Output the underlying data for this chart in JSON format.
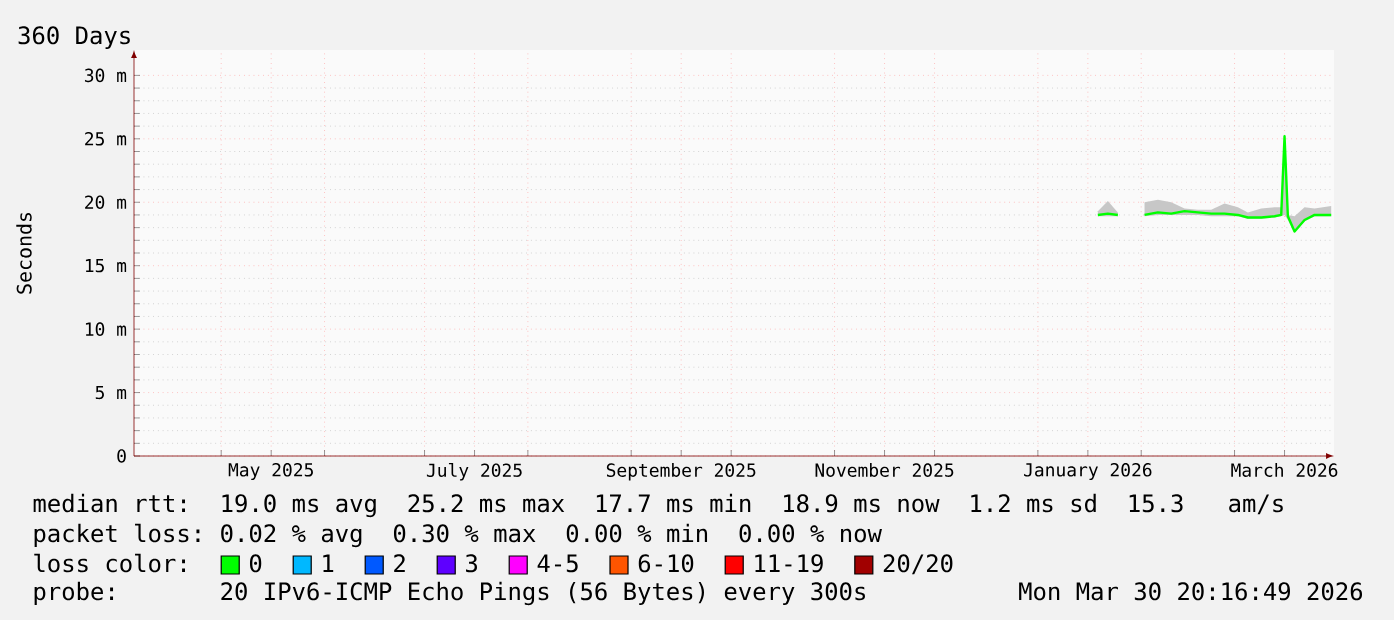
{
  "chart_data": {
    "type": "line",
    "title": "360 Days",
    "ylabel": "Seconds",
    "x": [
      "2026-02-02",
      "2026-02-06",
      "2026-02-10",
      "2026-02-14",
      "2026-02-18",
      "2026-02-22",
      "2026-02-26",
      "2026-03-02",
      "2026-03-05",
      "2026-03-09",
      "2026-03-13",
      "2026-03-15",
      "2026-03-16",
      "2026-03-17",
      "2026-03-19",
      "2026-03-22",
      "2026-03-25",
      "2026-03-30"
    ],
    "series": [
      {
        "name": "0",
        "color": "#00ff00",
        "values": [
          19.0,
          19.2,
          19.1,
          19.3,
          19.2,
          19.1,
          19.1,
          19.0,
          18.8,
          18.8,
          18.9,
          19.0,
          25.2,
          18.9,
          17.7,
          18.6,
          19.0,
          19.0
        ],
        "lower": [
          18.9,
          19.0,
          19.0,
          19.0,
          19.0,
          18.9,
          18.9,
          18.9,
          18.7,
          18.7,
          18.8,
          18.9,
          19.0,
          18.6,
          17.6,
          18.5,
          18.9,
          18.9
        ],
        "upper": [
          20.0,
          20.2,
          20.0,
          19.5,
          19.4,
          19.4,
          19.9,
          19.6,
          19.2,
          19.5,
          19.6,
          19.6,
          25.2,
          19.0,
          18.9,
          19.6,
          19.5,
          19.7
        ]
      },
      {
        "color": "#00ff00",
        "x": [
          "2026-01-19",
          "2026-01-22",
          "2026-01-25"
        ],
        "values": [
          19.0,
          19.1,
          19.0
        ],
        "lower": [
          18.9,
          18.9,
          18.9
        ],
        "upper": [
          19.3,
          20.1,
          19.2
        ]
      },
      {
        "name": "1",
        "color": "#00b8ff",
        "values": [
          null,
          null,
          null,
          null,
          null,
          null,
          null,
          null,
          null,
          null,
          null,
          null,
          null,
          null,
          null,
          null,
          null,
          null
        ]
      },
      {
        "name": "2",
        "color": "#0059ff",
        "values": [
          null,
          null,
          null,
          null,
          null,
          null,
          null,
          null,
          null,
          null,
          null,
          null,
          null,
          null,
          null,
          null,
          null,
          null
        ]
      },
      {
        "name": "3",
        "color": "#5e00ff",
        "values": [
          null,
          null,
          null,
          null,
          null,
          null,
          null,
          null,
          null,
          null,
          null,
          null,
          null,
          null,
          null,
          null,
          null,
          null
        ]
      },
      {
        "name": "4-5",
        "color": "#ff00ff",
        "values": [
          null,
          null,
          null,
          null,
          null,
          null,
          null,
          null,
          null,
          null,
          null,
          null,
          null,
          null,
          null,
          null,
          null,
          null
        ]
      },
      {
        "name": "6-10",
        "color": "#ff5500",
        "values": [
          null,
          null,
          null,
          null,
          null,
          null,
          null,
          null,
          null,
          null,
          null,
          null,
          null,
          null,
          null,
          null,
          null,
          null
        ]
      },
      {
        "name": "11-19",
        "color": "#ff0000",
        "values": [
          null,
          null,
          null,
          null,
          null,
          null,
          null,
          null,
          null,
          null,
          null,
          null,
          null,
          null,
          null,
          null,
          null,
          null
        ]
      },
      {
        "name": "20/20",
        "color": "#a10000",
        "values": [
          null,
          null,
          null,
          null,
          null,
          null,
          null,
          null,
          null,
          null,
          null,
          null,
          null,
          null,
          null,
          null,
          null,
          null
        ]
      }
    ],
    "xlim": [
      "2025-04-04T20:16",
      "2026-03-30T20:16"
    ],
    "xticks": [
      {
        "value": "2025-05-01",
        "label": null
      },
      {
        "value": "2025-05-16",
        "label": "May 2025"
      },
      {
        "value": "2025-06-01",
        "label": null
      },
      {
        "value": "2025-07-01",
        "label": null
      },
      {
        "value": "2025-07-16",
        "label": "July 2025"
      },
      {
        "value": "2025-08-01",
        "label": null
      },
      {
        "value": "2025-09-01",
        "label": null
      },
      {
        "value": "2025-09-16",
        "label": "September 2025"
      },
      {
        "value": "2025-10-01",
        "label": null
      },
      {
        "value": "2025-11-01",
        "label": null
      },
      {
        "value": "2025-11-16",
        "label": "November 2025"
      },
      {
        "value": "2025-12-01",
        "label": null
      },
      {
        "value": "2026-01-01",
        "label": null
      },
      {
        "value": "2026-01-16",
        "label": "January 2026"
      },
      {
        "value": "2026-02-01",
        "label": null
      },
      {
        "value": "2026-03-01",
        "label": null
      },
      {
        "value": "2026-03-16",
        "label": "March 2026"
      }
    ],
    "ylim": [
      0,
      32
    ],
    "yticks": [
      0,
      {
        "value": 5,
        "label": "5 m"
      },
      {
        "value": 10,
        "label": "10 m"
      },
      {
        "value": 15,
        "label": "15 m"
      },
      {
        "value": 20,
        "label": "20 m"
      },
      {
        "value": 25,
        "label": "25 m"
      },
      {
        "value": 30,
        "label": "30 m"
      }
    ],
    "grid": true,
    "legend": "bottom",
    "annotations": [
      "median rtt:",
      "19.0 ms avg",
      "25.2 ms max",
      "17.7 ms min",
      "18.9 ms now",
      "1.2 ms sd",
      "15.3",
      "am/s",
      "packet loss:",
      "0.02 % avg",
      "0.30 % max",
      "0.00 % min",
      "0.00 % now",
      "loss color:",
      "probe:",
      "20 IPv6-ICMP Echo Pings (56 Bytes) every 300s",
      "Mon Mar 30 20:16:49 2026"
    ]
  }
}
